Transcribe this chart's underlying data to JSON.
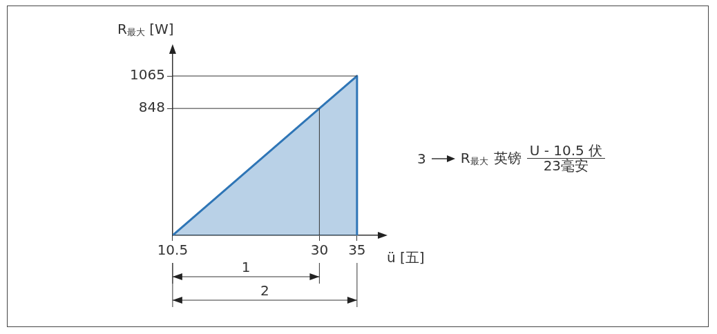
{
  "chart_data": {
    "type": "area",
    "xlabel": "ü [五]",
    "ylabel": "R$_{最大}$ [W]",
    "xlim": [
      10.5,
      38.5
    ],
    "xticks": [
      10.5,
      30,
      35
    ],
    "ylim": [
      0,
      1250
    ],
    "yticks": [
      848,
      1065
    ],
    "x": [
      10.5,
      30,
      35,
      35
    ],
    "series": [
      {
        "color": "#2e75b6",
        "values": [
          0,
          848,
          1065,
          0
        ]
      }
    ],
    "ref_lines": [
      {
        "axis": "y",
        "value": 1065
      },
      {
        "axis": "y",
        "value": 848
      },
      {
        "axis": "x",
        "value": 30
      }
    ],
    "annotations": [
      "1",
      "2",
      "3",
      "R$_{最大}$",
      "英镑",
      "U - 10.5 伏",
      "23毫安"
    ],
    "grid": false,
    "legend": false
  }
}
